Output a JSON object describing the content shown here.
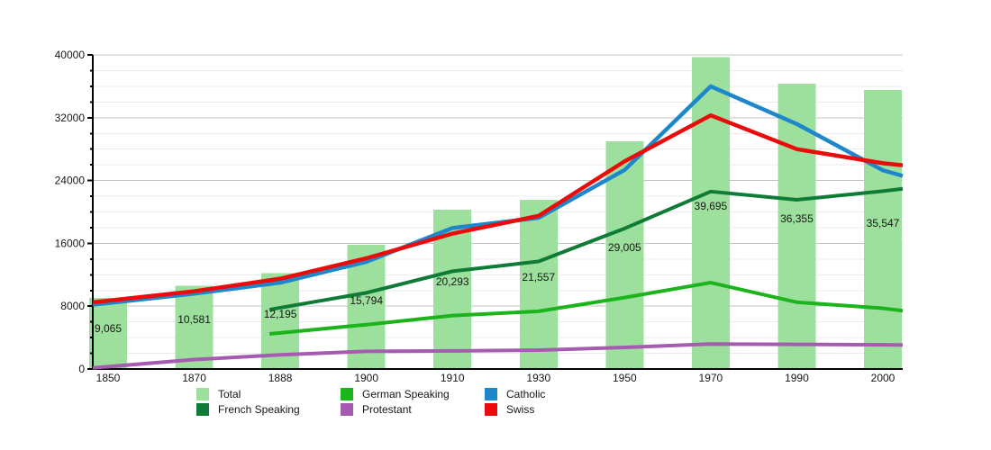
{
  "chart_data": {
    "type": "bar+line",
    "title": "",
    "years": [
      "1850",
      "1870",
      "1888",
      "1900",
      "1910",
      "1930",
      "1950",
      "1970",
      "1990",
      "2000"
    ],
    "y_axis": {
      "min": 0,
      "max": 40000,
      "major_step": 8000,
      "minor_step": 2000,
      "tick_labels": [
        "0",
        "8000",
        "16000",
        "24000",
        "32000",
        "40000"
      ]
    },
    "grid": {
      "major_color": "#c3c3c3",
      "minor_color": "#ebebeb",
      "axis_color": "#000000"
    },
    "bars": {
      "name": "Total",
      "color": "#9de09d",
      "values": [
        9065,
        10581,
        12195,
        15794,
        20293,
        21557,
        29005,
        39695,
        36355,
        35547
      ],
      "labels": [
        "9,065",
        "10,581",
        "12,195",
        "15,794",
        "20,293",
        "21,557",
        "29,005",
        "39,695",
        "36,355",
        "35,547"
      ]
    },
    "series": [
      {
        "name": "German Speaking",
        "color": "#1cb41c",
        "width": 4,
        "values": [
          null,
          null,
          4600,
          5650,
          6800,
          7350,
          9100,
          11000,
          8500,
          7730
        ],
        "edge_left": 4470,
        "edge_right": 7420
      },
      {
        "name": "French Speaking",
        "color": "#0e7c36",
        "width": 4,
        "values": [
          null,
          null,
          7800,
          9700,
          12450,
          13700,
          17900,
          22600,
          21550,
          22650
        ],
        "edge_left": 7560,
        "edge_right": 22950
      },
      {
        "name": "Protestant",
        "color": "#a55cb0",
        "width": 4,
        "values": [
          300,
          1200,
          1800,
          2250,
          2300,
          2400,
          2750,
          3180,
          3140,
          3080
        ],
        "edge_left": 150,
        "edge_right": 3070
      },
      {
        "name": "Catholic",
        "color": "#1e87cc",
        "width": 4.5,
        "values": [
          8400,
          9600,
          11000,
          13650,
          17950,
          19250,
          25350,
          36000,
          31200,
          25300
        ],
        "edge_left": 8200,
        "edge_right": 24600
      },
      {
        "name": "Swiss",
        "color": "#ea0b0b",
        "width": 4.5,
        "values": [
          8700,
          9900,
          11500,
          14100,
          17240,
          19500,
          26450,
          32300,
          28000,
          26200
        ],
        "edge_left": 8500,
        "edge_right": 25950
      }
    ],
    "legend": {
      "position": "bottom",
      "items": [
        {
          "label": "Total",
          "color": "#9de09d"
        },
        {
          "label": "German Speaking",
          "color": "#1cb41c"
        },
        {
          "label": "Catholic",
          "color": "#1e87cc"
        },
        {
          "label": "French Speaking",
          "color": "#0e7c36"
        },
        {
          "label": "Protestant",
          "color": "#a55cb0"
        },
        {
          "label": "Swiss",
          "color": "#ea0b0b"
        }
      ]
    },
    "text_color": "#161616"
  }
}
